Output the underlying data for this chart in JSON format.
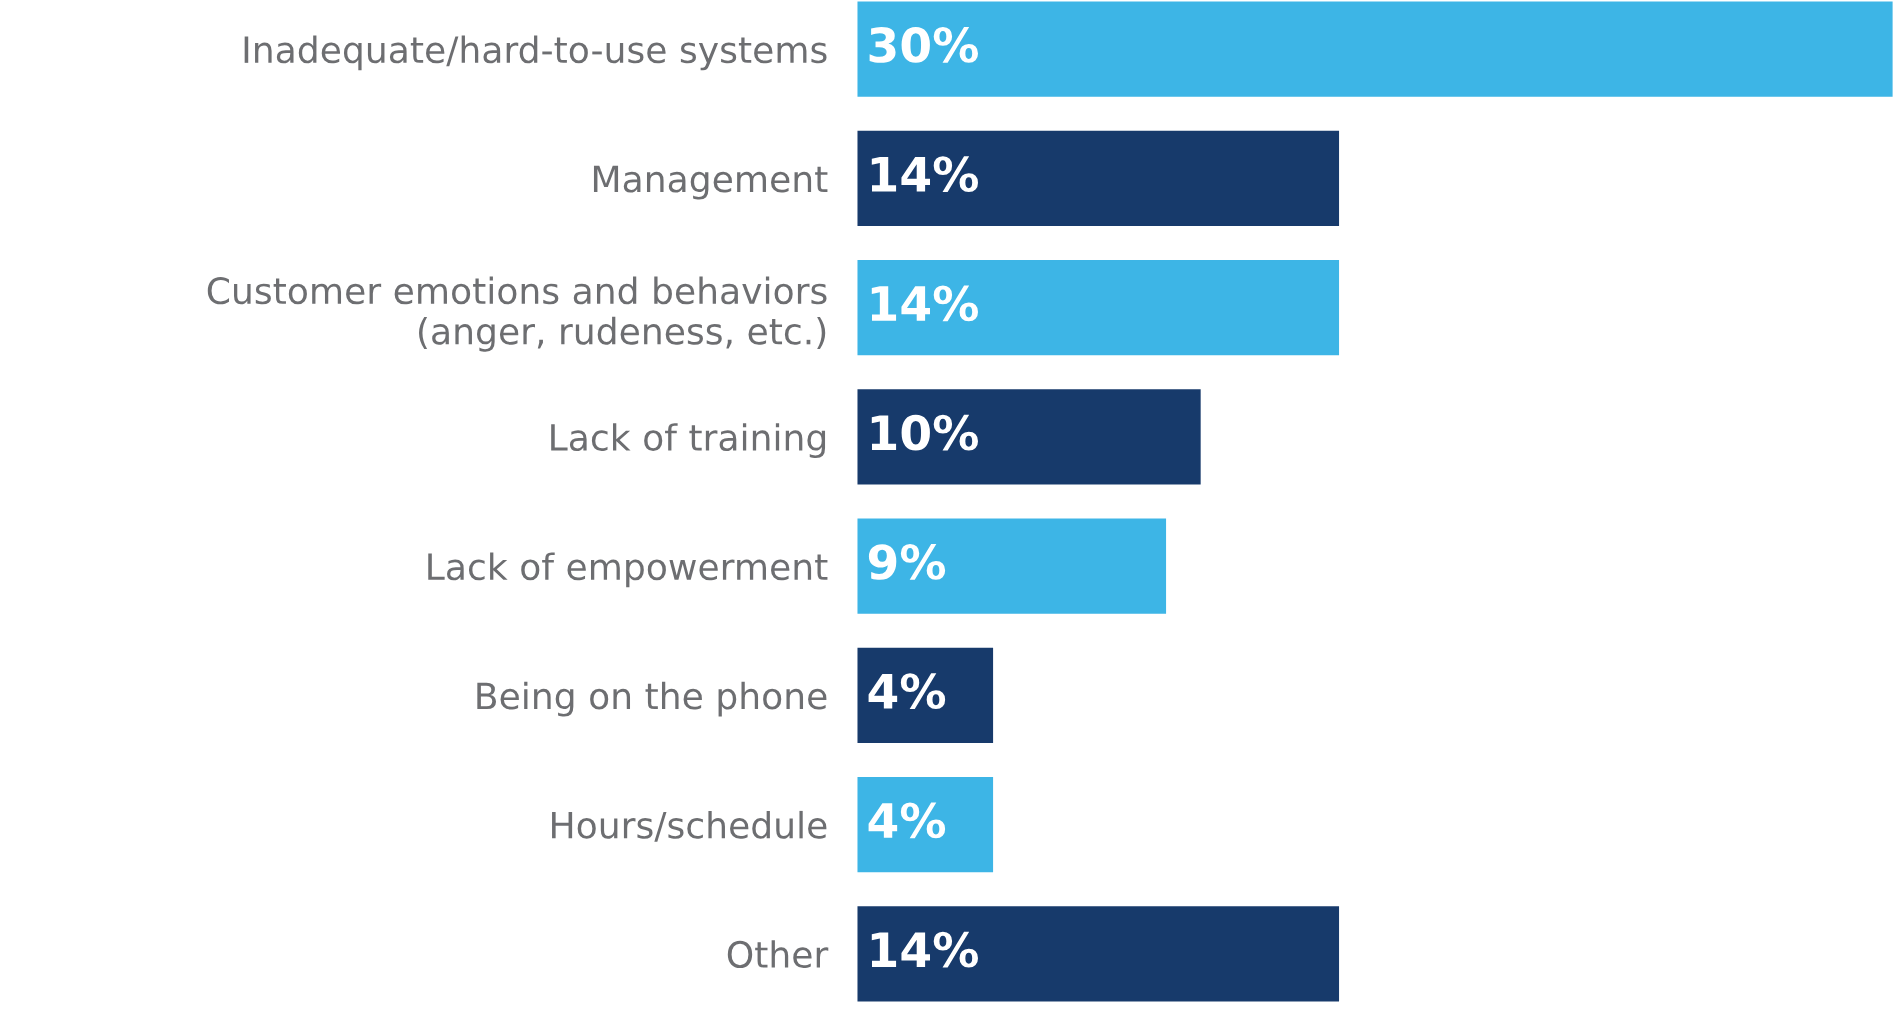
{
  "chart_data": {
    "type": "bar",
    "orientation": "horizontal",
    "categories": [
      "Inadequate/hard-to-use systems",
      "Management",
      "Customer emotions and behaviors\n(anger, rudeness, etc.)",
      "Lack of training",
      "Lack of empowerment",
      "Being on the phone",
      "Hours/schedule",
      "Other"
    ],
    "values": [
      30,
      14,
      14,
      10,
      9,
      4,
      4,
      14
    ],
    "value_labels": [
      "30%",
      "14%",
      "14%",
      "10%",
      "9%",
      "4%",
      "4%",
      "14%"
    ],
    "colors": [
      "#3db5e6",
      "#173a6b",
      "#3db5e6",
      "#173a6b",
      "#3db5e6",
      "#173a6b",
      "#3db5e6",
      "#173a6b"
    ],
    "grid": false,
    "legend": false
  }
}
